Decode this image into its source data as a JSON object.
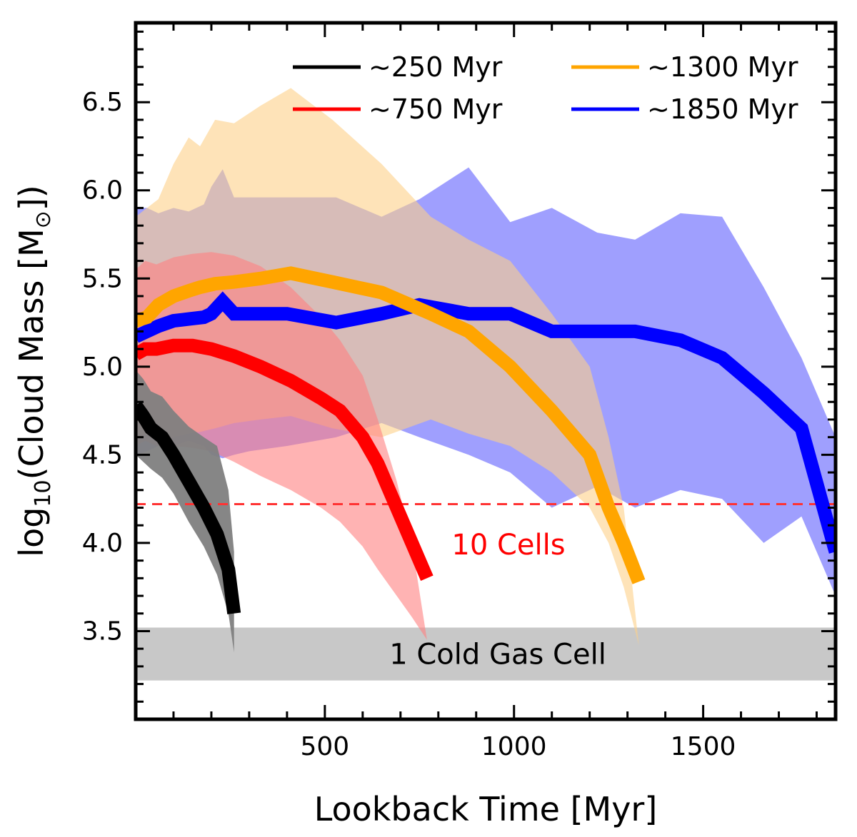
{
  "chart_data": {
    "type": "line",
    "title": "",
    "xlabel": "Lookback Time [Myr]",
    "ylabel_parts": {
      "prefix": "log",
      "sub": "10",
      "mid": "(Cloud Mass [M",
      "sun": "⊙",
      "suffix": "])"
    },
    "xlim": [
      0,
      1850
    ],
    "ylim": [
      3.0,
      6.95
    ],
    "x_ticks": [
      500,
      1000,
      1500
    ],
    "x_tick_labels": [
      "500",
      "1000",
      "1500"
    ],
    "y_ticks": [
      3.5,
      4.0,
      4.5,
      5.0,
      5.5,
      6.0,
      6.5
    ],
    "y_tick_labels": [
      "3.5",
      "4.0",
      "4.5",
      "5.0",
      "5.5",
      "6.0",
      "6.5"
    ],
    "legend_position": "top-right",
    "series": [
      {
        "name": "~250 Myr",
        "label": "∼250 Myr",
        "color": "#000000",
        "band_color": "#808080",
        "x": [
          0,
          20,
          40,
          70,
          100,
          140,
          180,
          215,
          245,
          260
        ],
        "median": [
          4.78,
          4.72,
          4.65,
          4.6,
          4.5,
          4.35,
          4.2,
          4.05,
          3.85,
          3.6
        ],
        "upper": [
          4.98,
          4.93,
          4.86,
          4.83,
          4.75,
          4.66,
          4.6,
          4.55,
          4.3,
          3.95
        ],
        "lower": [
          4.5,
          4.46,
          4.42,
          4.37,
          4.28,
          4.12,
          3.98,
          3.82,
          3.6,
          3.38
        ]
      },
      {
        "name": "~750 Myr",
        "label": "∼750 Myr",
        "color": "#ff0000",
        "band_color": "#ff8080",
        "x": [
          0,
          25,
          55,
          100,
          150,
          200,
          260,
          330,
          410,
          490,
          540,
          600,
          640,
          690,
          730,
          770
        ],
        "median": [
          5.07,
          5.1,
          5.1,
          5.12,
          5.12,
          5.1,
          5.06,
          5.0,
          4.92,
          4.82,
          4.75,
          4.6,
          4.45,
          4.2,
          4.0,
          3.8
        ],
        "upper": [
          5.55,
          5.6,
          5.58,
          5.62,
          5.64,
          5.65,
          5.63,
          5.57,
          5.45,
          5.28,
          5.15,
          4.95,
          4.7,
          4.35,
          4.0,
          3.45
        ],
        "lower": [
          4.55,
          4.58,
          4.55,
          4.55,
          4.54,
          4.52,
          4.46,
          4.38,
          4.3,
          4.2,
          4.12,
          3.98,
          3.85,
          3.7,
          3.58,
          3.45
        ]
      },
      {
        "name": "~1300 Myr",
        "label": "∼1300 Myr",
        "color": "#ffa500",
        "band_color": "#fdd089",
        "x": [
          0,
          30,
          60,
          100,
          140,
          170,
          210,
          260,
          330,
          410,
          520,
          650,
          780,
          880,
          990,
          1100,
          1200,
          1250,
          1290,
          1330
        ],
        "median": [
          5.26,
          5.28,
          5.35,
          5.4,
          5.43,
          5.45,
          5.47,
          5.48,
          5.5,
          5.53,
          5.48,
          5.42,
          5.3,
          5.2,
          5.0,
          4.75,
          4.5,
          4.2,
          4.0,
          3.78
        ],
        "upper": [
          5.85,
          5.9,
          5.95,
          6.15,
          6.3,
          6.25,
          6.4,
          6.38,
          6.48,
          6.58,
          6.4,
          6.15,
          5.85,
          5.72,
          5.6,
          5.3,
          5.0,
          4.6,
          4.2,
          3.42
        ],
        "lower": [
          4.6,
          4.62,
          4.6,
          4.6,
          4.62,
          4.63,
          4.65,
          4.68,
          4.7,
          4.72,
          4.65,
          4.6,
          4.7,
          4.62,
          4.55,
          4.4,
          4.2,
          4.0,
          3.75,
          3.42
        ]
      },
      {
        "name": "~1850 Myr",
        "label": "∼1850 Myr",
        "color": "#0000ff",
        "band_color": "#7f7ffe",
        "x": [
          0,
          30,
          60,
          100,
          140,
          180,
          200,
          230,
          260,
          300,
          400,
          530,
          650,
          750,
          880,
          990,
          1100,
          1220,
          1320,
          1440,
          1550,
          1660,
          1760,
          1850
        ],
        "median": [
          5.17,
          5.2,
          5.23,
          5.26,
          5.27,
          5.28,
          5.3,
          5.37,
          5.3,
          5.3,
          5.3,
          5.25,
          5.3,
          5.35,
          5.3,
          5.3,
          5.2,
          5.2,
          5.2,
          5.15,
          5.05,
          4.85,
          4.65,
          3.95
        ],
        "upper": [
          5.9,
          5.9,
          5.87,
          5.9,
          5.88,
          5.92,
          6.02,
          6.12,
          5.96,
          5.96,
          5.96,
          5.96,
          5.85,
          5.95,
          6.13,
          5.82,
          5.9,
          5.76,
          5.72,
          5.87,
          5.85,
          5.45,
          5.05,
          4.6
        ],
        "lower": [
          4.5,
          4.52,
          4.55,
          4.55,
          4.58,
          4.55,
          4.5,
          4.48,
          4.5,
          4.52,
          4.55,
          4.6,
          4.68,
          4.6,
          4.5,
          4.4,
          4.2,
          4.32,
          4.2,
          4.3,
          4.25,
          4.0,
          4.15,
          3.7
        ]
      }
    ],
    "reference_line": {
      "y": 4.22,
      "color": "#ff3333",
      "label": "10 Cells",
      "label_x": 1290
    },
    "reference_band": {
      "y_min": 3.22,
      "y_max": 3.52,
      "color": "#c8c8c8",
      "label": "1 Cold Gas Cell"
    }
  }
}
